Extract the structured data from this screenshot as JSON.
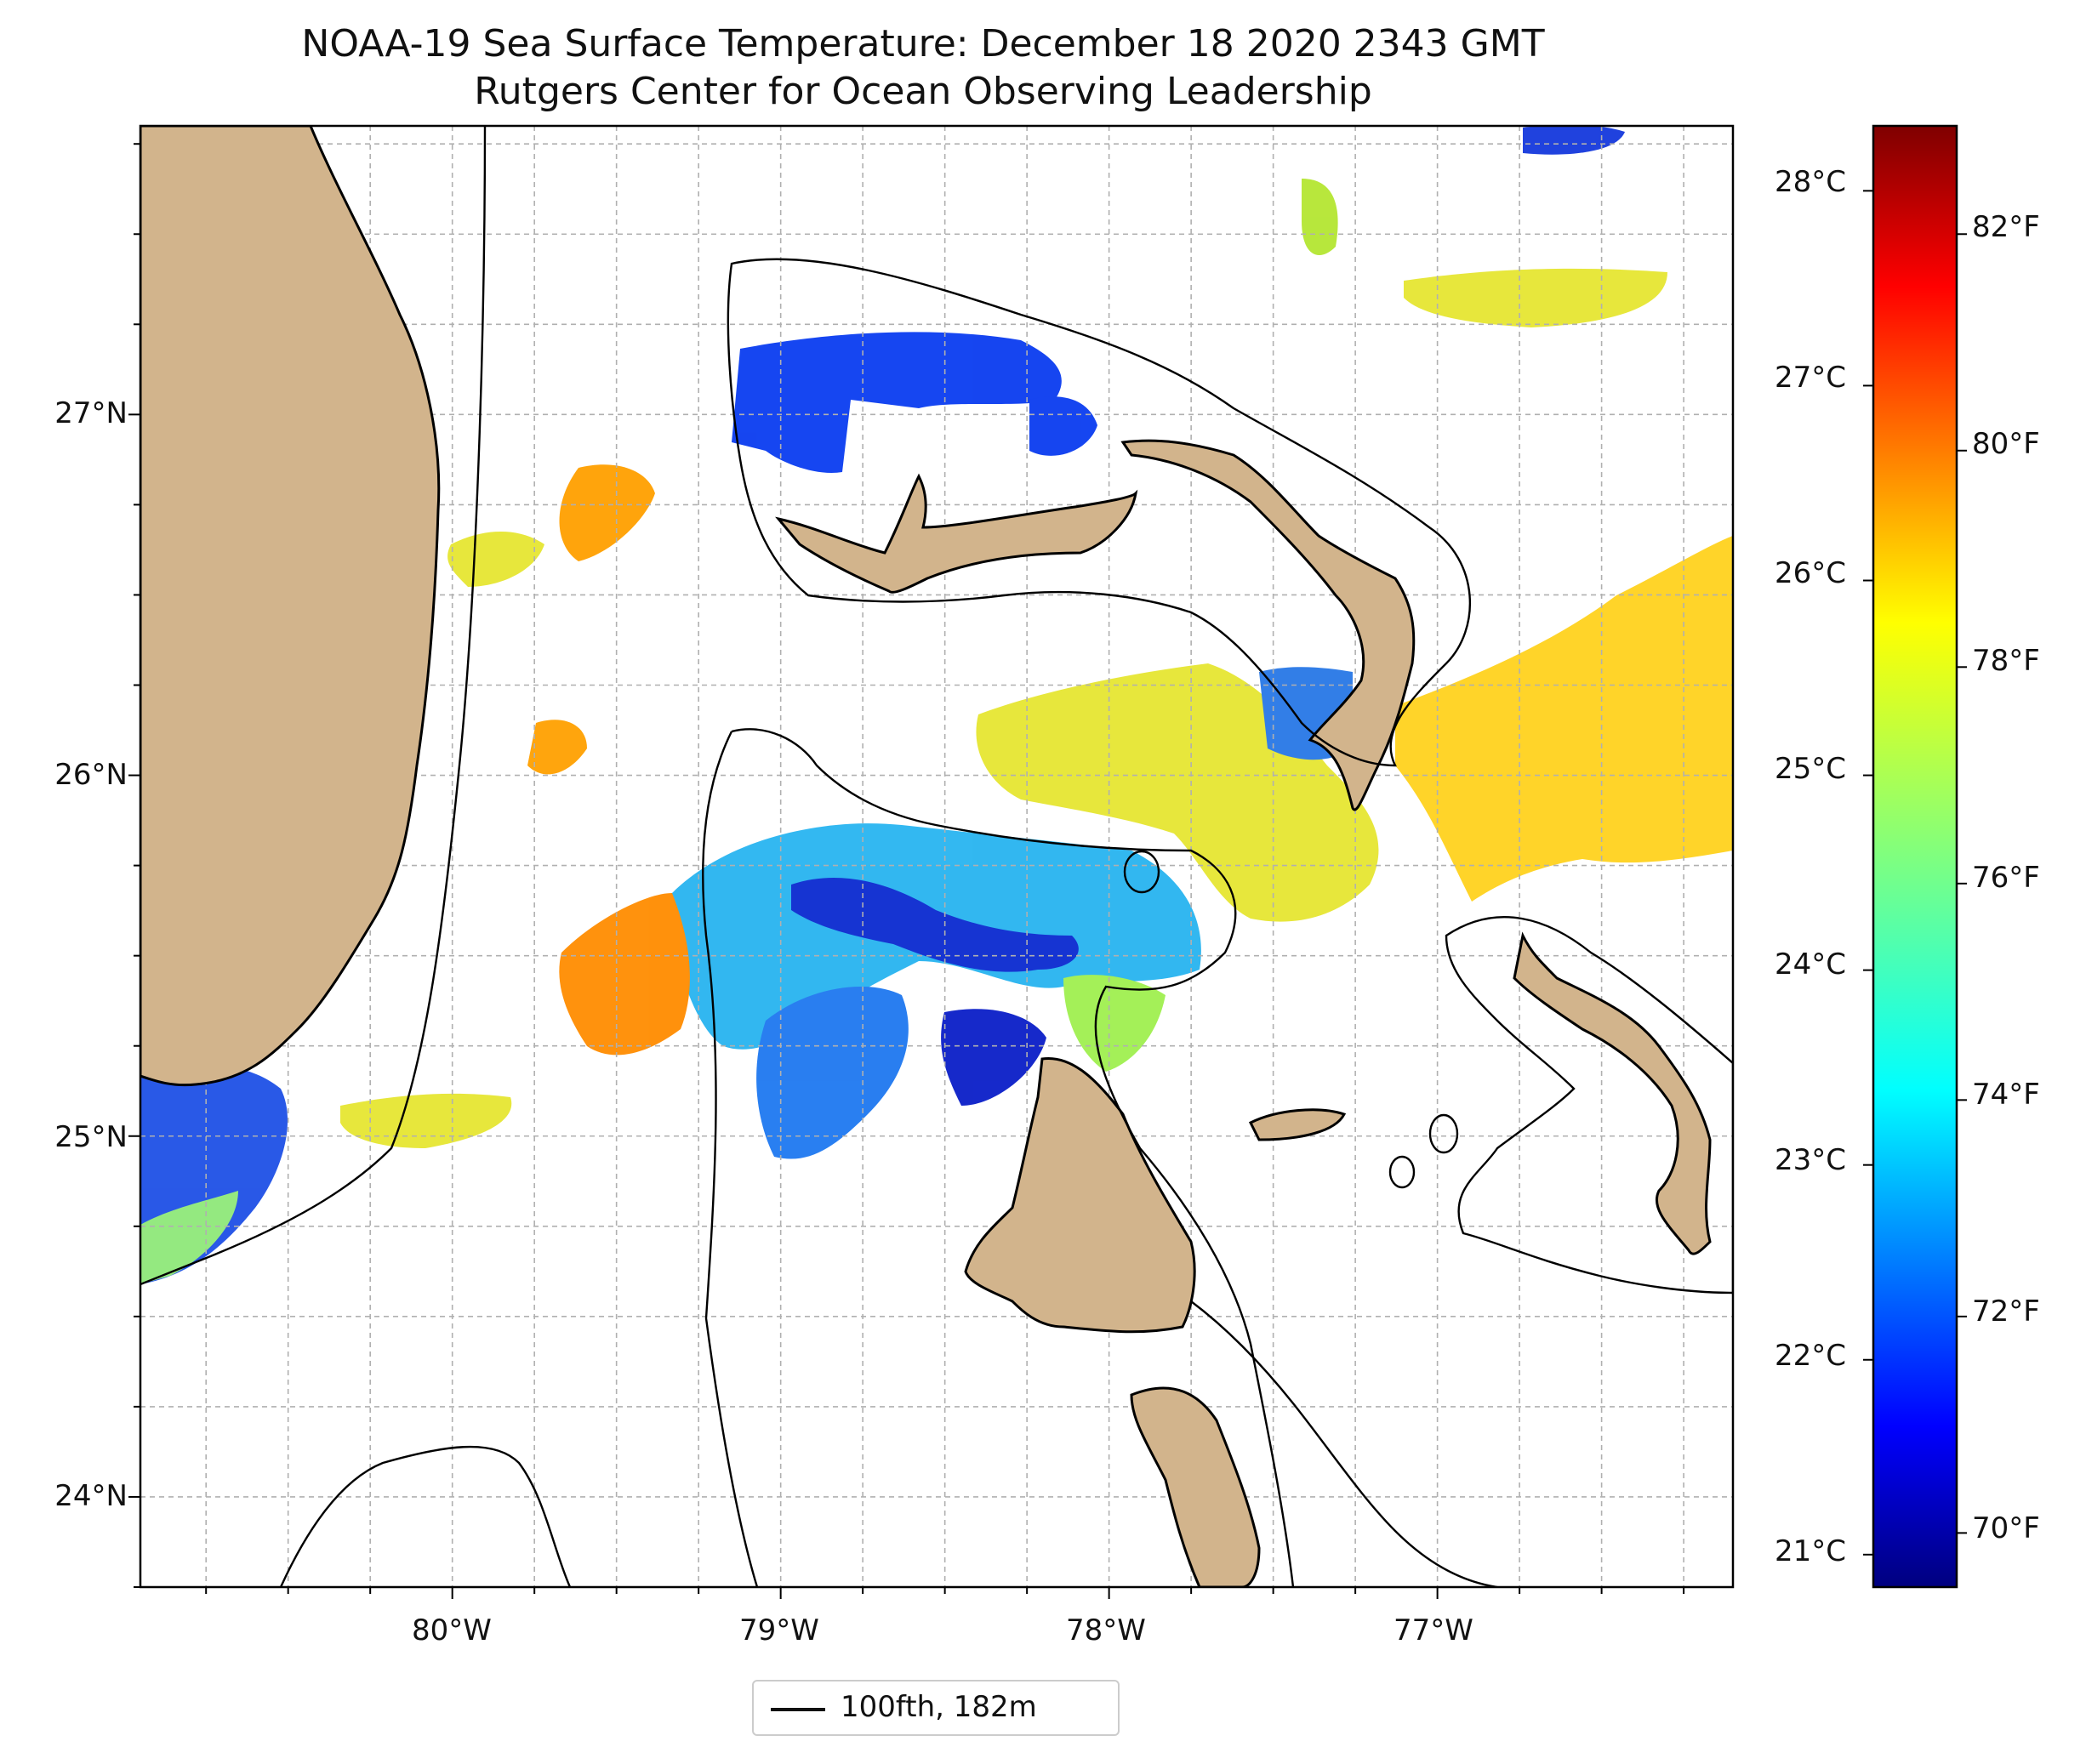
{
  "title": {
    "line1": "NOAA-19 Sea Surface Temperature: December 18 2020 2343 GMT",
    "line2": "Rutgers Center for Ocean Observing Leadership"
  },
  "legend": {
    "label": "100fth, 182m"
  },
  "axes": {
    "lon_ticks": [
      "80°W",
      "79°W",
      "78°W",
      "77°W"
    ],
    "lat_ticks": [
      "27°N",
      "26°N",
      "25°N",
      "24°N"
    ]
  },
  "colorbar": {
    "celsius_ticks": [
      "28°C",
      "27°C",
      "26°C",
      "25°C",
      "24°C",
      "23°C",
      "22°C",
      "21°C"
    ],
    "fahrenheit_ticks": [
      "82°F",
      "80°F",
      "78°F",
      "76°F",
      "74°F",
      "72°F",
      "70°F"
    ],
    "colormap": [
      "#00007f",
      "#0000ff",
      "#007fff",
      "#00ffff",
      "#7fff7f",
      "#ffff00",
      "#ff7f00",
      "#ff0000",
      "#7f0000"
    ]
  },
  "colors": {
    "land": "#d2b48c",
    "grid": "#b0b0b0",
    "coast": "#000000"
  },
  "chart_data": {
    "type": "heatmap",
    "variable": "Sea Surface Temperature",
    "lon_range": [
      -80.95,
      -76.1
    ],
    "lat_range": [
      23.75,
      27.8
    ],
    "xticks": [
      -80,
      -79,
      -78,
      -77
    ],
    "yticks": [
      27,
      26,
      25,
      24
    ],
    "colorbar_range_f": [
      69.5,
      83.0
    ],
    "colorbar_ticks_c": [
      28,
      27,
      26,
      25,
      24,
      23,
      22,
      21
    ],
    "colorbar_ticks_f": [
      82,
      80,
      78,
      76,
      74,
      72,
      70
    ],
    "grid": true,
    "legend_position": "bottom-center"
  }
}
